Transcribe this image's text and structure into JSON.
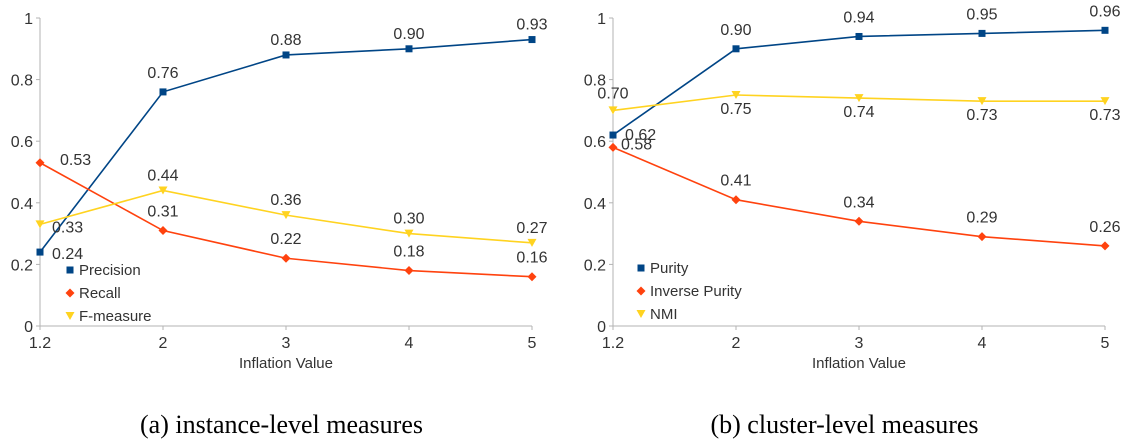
{
  "chart_data": [
    {
      "type": "line",
      "caption": "(a) instance-level measures",
      "xlabel": "Inflation Value",
      "x_tick_labels": [
        "1.2",
        "2",
        "3",
        "4",
        "5"
      ],
      "ylim": [
        0,
        1
      ],
      "y_tick_labels": [
        "0",
        "0.2",
        "0.4",
        "0.6",
        "0.8",
        "1"
      ],
      "legend_position": "bottom-left",
      "series": [
        {
          "name": "Precision",
          "marker": "square",
          "color": "#004586",
          "values": [
            0.24,
            0.76,
            0.88,
            0.9,
            0.93
          ],
          "labels": [
            "0.24",
            "0.76",
            "0.88",
            "0.90",
            "0.93"
          ]
        },
        {
          "name": "Recall",
          "marker": "diamond",
          "color": "#ff420e",
          "values": [
            0.53,
            0.31,
            0.22,
            0.18,
            0.16
          ],
          "labels": [
            "0.53",
            "0.31",
            "0.22",
            "0.18",
            "0.16"
          ]
        },
        {
          "name": "F-measure",
          "marker": "triangle-down",
          "color": "#ffd320",
          "values": [
            0.33,
            0.44,
            0.36,
            0.3,
            0.27
          ],
          "labels": [
            "0.33",
            "0.44",
            "0.36",
            "0.30",
            "0.27"
          ]
        }
      ]
    },
    {
      "type": "line",
      "caption": "(b) cluster-level measures",
      "xlabel": "Inflation Value",
      "x_tick_labels": [
        "1.2",
        "2",
        "3",
        "4",
        "5"
      ],
      "ylim": [
        0,
        1
      ],
      "y_tick_labels": [
        "0",
        "0.2",
        "0.4",
        "0.6",
        "0.8",
        "1"
      ],
      "legend_position": "bottom-left",
      "series": [
        {
          "name": "Purity",
          "marker": "square",
          "color": "#004586",
          "values": [
            0.62,
            0.9,
            0.94,
            0.95,
            0.96
          ],
          "labels": [
            "0.62",
            "0.90",
            "0.94",
            "0.95",
            "0.96"
          ]
        },
        {
          "name": "Inverse Purity",
          "marker": "diamond",
          "color": "#ff420e",
          "values": [
            0.58,
            0.41,
            0.34,
            0.29,
            0.26
          ],
          "labels": [
            "0.58",
            "0.41",
            "0.34",
            "0.29",
            "0.26"
          ]
        },
        {
          "name": "NMI",
          "marker": "triangle-down",
          "color": "#ffd320",
          "values": [
            0.7,
            0.75,
            0.74,
            0.73,
            0.73
          ],
          "labels": [
            "0.70",
            "0.75",
            "0.74",
            "0.73",
            "0.73"
          ]
        }
      ]
    }
  ]
}
